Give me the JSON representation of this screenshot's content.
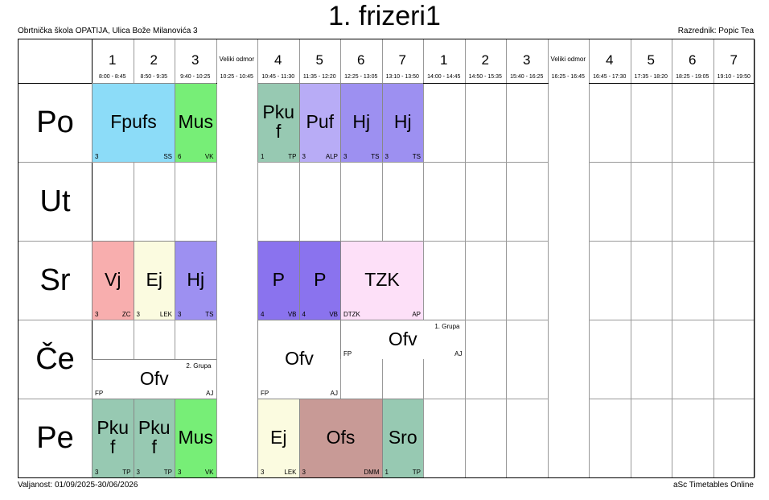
{
  "title": "1. frizeri1",
  "school": "Obrtnička škola OPATIJA, Ulica Bože Milanovića 3",
  "class_teacher": "Razrednik: Popic Tea",
  "validity": "Valjanost: 01/09/2025-30/06/2026",
  "footer_brand": "aSc Timetables Online",
  "periods": [
    {
      "label": "1",
      "time": "8:00 - 8:45"
    },
    {
      "label": "2",
      "time": "8:50 - 9:35"
    },
    {
      "label": "3",
      "time": "9:40 - 10:25"
    },
    {
      "label": "Veliki odmor",
      "time": "10:25 - 10:45"
    },
    {
      "label": "4",
      "time": "10:45 - 11:30"
    },
    {
      "label": "5",
      "time": "11:35 - 12:20"
    },
    {
      "label": "6",
      "time": "12:25 - 13:05"
    },
    {
      "label": "7",
      "time": "13:10 - 13:50"
    },
    {
      "label": "1",
      "time": "14:00 - 14:45"
    },
    {
      "label": "2",
      "time": "14:50 - 15:35"
    },
    {
      "label": "3",
      "time": "15:40 - 16:25"
    },
    {
      "label": "Veliki odmor",
      "time": "16:25 - 16:45"
    },
    {
      "label": "4",
      "time": "16:45 - 17:30"
    },
    {
      "label": "5",
      "time": "17:35 - 18:20"
    },
    {
      "label": "6",
      "time": "18:25 - 19:05"
    },
    {
      "label": "7",
      "time": "19:10 - 19:50"
    }
  ],
  "days": [
    "Po",
    "Ut",
    "Sr",
    "Če",
    "Pe"
  ],
  "lessons": [
    {
      "day": 0,
      "start": 0,
      "span": 2,
      "subject": "Fpufs",
      "room": "3",
      "teacher": "SS",
      "group": "",
      "color": "#8cdcf8"
    },
    {
      "day": 0,
      "start": 2,
      "span": 1,
      "subject": "Mus",
      "room": "6",
      "teacher": "VK",
      "group": "",
      "color": "#77ee77"
    },
    {
      "day": 0,
      "start": 4,
      "span": 1,
      "subject": "Pkuf",
      "room": "1",
      "teacher": "TP",
      "group": "",
      "color": "#97c9b2"
    },
    {
      "day": 0,
      "start": 5,
      "span": 1,
      "subject": "Puf",
      "room": "3",
      "teacher": "ALP",
      "group": "",
      "color": "#b8acf6"
    },
    {
      "day": 0,
      "start": 6,
      "span": 1,
      "subject": "Hj",
      "room": "3",
      "teacher": "TS",
      "group": "",
      "color": "#9d90f1"
    },
    {
      "day": 0,
      "start": 7,
      "span": 1,
      "subject": "Hj",
      "room": "3",
      "teacher": "TS",
      "group": "",
      "color": "#9d90f1"
    },
    {
      "day": 2,
      "start": 0,
      "span": 1,
      "subject": "Vj",
      "room": "3",
      "teacher": "ZC",
      "group": "",
      "color": "#f8aeae"
    },
    {
      "day": 2,
      "start": 1,
      "span": 1,
      "subject": "Ej",
      "room": "3",
      "teacher": "LEK",
      "group": "",
      "color": "#fbfbe0"
    },
    {
      "day": 2,
      "start": 2,
      "span": 1,
      "subject": "Hj",
      "room": "3",
      "teacher": "TS",
      "group": "",
      "color": "#9d90f1"
    },
    {
      "day": 2,
      "start": 4,
      "span": 1,
      "subject": "P",
      "room": "4",
      "teacher": "VB",
      "group": "",
      "color": "#8a73ee"
    },
    {
      "day": 2,
      "start": 5,
      "span": 1,
      "subject": "P",
      "room": "4",
      "teacher": "VB",
      "group": "",
      "color": "#8a73ee"
    },
    {
      "day": 2,
      "start": 6,
      "span": 2,
      "subject": "TZK",
      "room": "DTZK",
      "teacher": "AP",
      "group": "",
      "color": "#fde0f8"
    },
    {
      "day": 3,
      "start": 6,
      "span": 3,
      "subject": "Ofv",
      "room": "FP",
      "teacher": "AJ",
      "group": "1. Grupa",
      "half": "top",
      "color": "#ffffff"
    },
    {
      "day": 3,
      "start": 0,
      "span": 3,
      "subject": "Ofv",
      "room": "FP",
      "teacher": "AJ",
      "group": "2. Grupa",
      "half": "bottom",
      "color": "#ffffff"
    },
    {
      "day": 3,
      "start": 4,
      "span": 2,
      "subject": "Ofv",
      "room": "FP",
      "teacher": "AJ",
      "group": "",
      "color": "#ffffff"
    },
    {
      "day": 4,
      "start": 0,
      "span": 1,
      "subject": "Pkuf",
      "room": "3",
      "teacher": "TP",
      "group": "",
      "color": "#97c9b2"
    },
    {
      "day": 4,
      "start": 1,
      "span": 1,
      "subject": "Pkuf",
      "room": "3",
      "teacher": "TP",
      "group": "",
      "color": "#97c9b2"
    },
    {
      "day": 4,
      "start": 2,
      "span": 1,
      "subject": "Mus",
      "room": "3",
      "teacher": "VK",
      "group": "",
      "color": "#77ee77"
    },
    {
      "day": 4,
      "start": 4,
      "span": 1,
      "subject": "Ej",
      "room": "3",
      "teacher": "LEK",
      "group": "",
      "color": "#fbfbe0"
    },
    {
      "day": 4,
      "start": 5,
      "span": 2,
      "subject": "Ofs",
      "room": "3",
      "teacher": "DMM",
      "group": "",
      "color": "#c89a96"
    },
    {
      "day": 4,
      "start": 7,
      "span": 1,
      "subject": "Sro",
      "room": "1",
      "teacher": "TP",
      "group": "",
      "color": "#97c9b2"
    }
  ]
}
